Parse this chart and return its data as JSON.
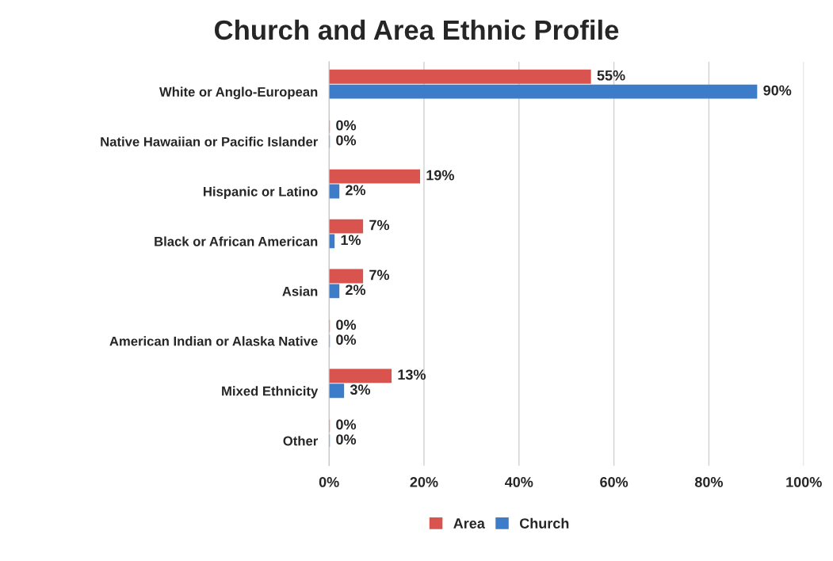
{
  "chart_data": {
    "type": "bar",
    "orientation": "horizontal",
    "title": "Church and Area Ethnic Profile",
    "categories": [
      "White or Anglo-European",
      "Native Hawaiian or Pacific Islander",
      "Hispanic or Latino",
      "Black or African American",
      "Asian",
      "American Indian or Alaska Native",
      "Mixed Ethnicity",
      "Other"
    ],
    "series": [
      {
        "name": "Area",
        "color": "#d9534f",
        "values": [
          55,
          0,
          19,
          7,
          7,
          0,
          13,
          0
        ],
        "value_labels": [
          "55%",
          "0%",
          "19%",
          "7%",
          "7%",
          "0%",
          "13%",
          "0%"
        ]
      },
      {
        "name": "Church",
        "color": "#3d7cc9",
        "values": [
          90,
          0,
          2,
          1,
          2,
          0,
          3,
          0
        ],
        "value_labels": [
          "90%",
          "0%",
          "2%",
          "1%",
          "2%",
          "0%",
          "3%",
          "0%"
        ]
      }
    ],
    "xlim": [
      0,
      100
    ],
    "xticks": [
      {
        "value": 0,
        "label": "0%"
      },
      {
        "value": 20,
        "label": "20%"
      },
      {
        "value": 40,
        "label": "40%"
      },
      {
        "value": 60,
        "label": "60%"
      },
      {
        "value": 80,
        "label": "80%"
      },
      {
        "value": 100,
        "label": "100%"
      }
    ],
    "grid": "x",
    "legend": "bottom"
  }
}
